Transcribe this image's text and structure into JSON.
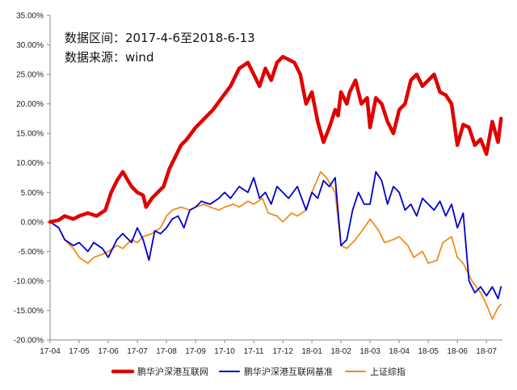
{
  "chart_data": {
    "type": "line",
    "annotations": [
      "数据区间：2017-4-6至2018-6-13",
      "数据来源：wind"
    ],
    "y_ticks": [
      "35.00%",
      "30.00%",
      "25.00%",
      "20.00%",
      "15.00%",
      "10.00%",
      "5.00%",
      "0.00%",
      "-5.00%",
      "-10.00%",
      "-15.00%",
      "-20.00%"
    ],
    "ylim": [
      -20,
      35
    ],
    "x_ticks": [
      "17-04",
      "17-05",
      "17-06",
      "17-07",
      "17-08",
      "17-09",
      "17-10",
      "17-11",
      "17-12",
      "18-01",
      "18-02",
      "18-03",
      "18-04",
      "18-05",
      "18-06",
      "18-07"
    ],
    "xlim": [
      0,
      15.55
    ],
    "grid": false,
    "legend_position": "bottom",
    "series": [
      {
        "name": "鹏华沪深港互联网",
        "color": "#e00000",
        "x": [
          0,
          0.3,
          0.5,
          0.8,
          1.0,
          1.3,
          1.6,
          1.9,
          2.1,
          2.3,
          2.5,
          2.8,
          3.0,
          3.2,
          3.3,
          3.5,
          3.7,
          3.9,
          4.1,
          4.3,
          4.5,
          4.7,
          5.0,
          5.3,
          5.6,
          5.9,
          6.2,
          6.5,
          6.8,
          7.0,
          7.2,
          7.4,
          7.6,
          7.8,
          8.0,
          8.2,
          8.4,
          8.6,
          8.8,
          9.0,
          9.2,
          9.4,
          9.6,
          9.8,
          9.9,
          10.0,
          10.1,
          10.2,
          10.3,
          10.5,
          10.7,
          10.9,
          11.0,
          11.2,
          11.4,
          11.6,
          11.8,
          12.0,
          12.2,
          12.4,
          12.6,
          12.8,
          13.0,
          13.2,
          13.4,
          13.6,
          13.8,
          14.0,
          14.2,
          14.4,
          14.6,
          14.8,
          15.0,
          15.2,
          15.4,
          15.5
        ],
        "values": [
          0,
          0.3,
          1.0,
          0.5,
          1.0,
          1.5,
          1.0,
          2.0,
          5.0,
          7.0,
          8.5,
          6.0,
          5.0,
          4.5,
          2.5,
          4.0,
          5.0,
          6.0,
          9.0,
          11.0,
          13.0,
          14.0,
          16.0,
          17.5,
          19.0,
          21.0,
          23.0,
          26.0,
          27.0,
          25.0,
          23.0,
          26.0,
          24.0,
          27.0,
          28.0,
          27.5,
          27.0,
          25.0,
          20.0,
          22.0,
          17.0,
          13.5,
          16.0,
          19.0,
          18.0,
          22.0,
          21.0,
          20.0,
          22.0,
          24.0,
          20.0,
          21.0,
          16.0,
          21.0,
          20.0,
          17.0,
          15.0,
          19.0,
          20.0,
          24.0,
          25.0,
          23.0,
          24.0,
          25.0,
          22.0,
          21.5,
          20.0,
          13.0,
          16.5,
          16.0,
          13.0,
          14.0,
          11.5,
          17.0,
          13.5,
          17.5
        ]
      },
      {
        "name": "鹏华沪深港互联网基准",
        "color": "#0000cc",
        "x": [
          0,
          0.3,
          0.5,
          0.8,
          1.0,
          1.3,
          1.5,
          1.8,
          2.0,
          2.3,
          2.5,
          2.8,
          3.0,
          3.2,
          3.4,
          3.6,
          3.8,
          4.0,
          4.2,
          4.4,
          4.6,
          4.8,
          5.0,
          5.2,
          5.5,
          5.8,
          6.0,
          6.2,
          6.5,
          6.8,
          7.0,
          7.2,
          7.4,
          7.6,
          7.8,
          8.0,
          8.2,
          8.5,
          8.8,
          9.0,
          9.2,
          9.4,
          9.6,
          9.8,
          10.0,
          10.2,
          10.4,
          10.6,
          10.8,
          11.0,
          11.2,
          11.4,
          11.6,
          11.8,
          12.0,
          12.2,
          12.4,
          12.6,
          12.8,
          13.0,
          13.2,
          13.4,
          13.6,
          13.8,
          14.0,
          14.2,
          14.4,
          14.6,
          14.8,
          15.0,
          15.2,
          15.4,
          15.5
        ],
        "values": [
          0,
          -1.0,
          -3.0,
          -4.0,
          -3.5,
          -5.0,
          -3.5,
          -4.5,
          -6.0,
          -3.0,
          -2.0,
          -3.5,
          -1.0,
          -3.0,
          -6.5,
          -1.5,
          -2.0,
          -1.0,
          0.5,
          1.0,
          -1.0,
          2.0,
          2.5,
          3.5,
          3.0,
          4.0,
          5.0,
          4.0,
          6.0,
          5.0,
          7.5,
          4.0,
          5.0,
          3.0,
          6.0,
          5.0,
          4.0,
          6.0,
          2.0,
          5.0,
          4.0,
          7.0,
          6.0,
          7.5,
          -4.0,
          -3.0,
          2.0,
          5.0,
          3.0,
          3.0,
          8.5,
          7.0,
          3.0,
          6.0,
          5.0,
          2.0,
          3.0,
          1.0,
          4.0,
          3.0,
          2.0,
          3.5,
          1.0,
          3.0,
          -1.0,
          1.5,
          -10.0,
          -12.0,
          -11.0,
          -12.5,
          -11.0,
          -13.0,
          -11.0
        ]
      },
      {
        "name": "上证综指",
        "color": "#f08c1e",
        "x": [
          0,
          0.3,
          0.5,
          0.8,
          1.0,
          1.3,
          1.5,
          1.8,
          2.0,
          2.3,
          2.5,
          2.8,
          3.0,
          3.2,
          3.5,
          3.8,
          4.0,
          4.2,
          4.5,
          4.8,
          5.0,
          5.3,
          5.5,
          5.8,
          6.0,
          6.3,
          6.5,
          6.8,
          7.0,
          7.3,
          7.5,
          7.8,
          8.0,
          8.3,
          8.5,
          8.8,
          9.0,
          9.3,
          9.5,
          9.8,
          10.0,
          10.2,
          10.5,
          10.8,
          11.0,
          11.3,
          11.5,
          11.8,
          12.0,
          12.3,
          12.5,
          12.8,
          13.0,
          13.3,
          13.5,
          13.8,
          14.0,
          14.2,
          14.5,
          14.8,
          15.0,
          15.2,
          15.4,
          15.5
        ],
        "values": [
          0,
          -1.0,
          -3.0,
          -4.5,
          -6.0,
          -7.0,
          -6.0,
          -5.5,
          -5.0,
          -4.0,
          -4.5,
          -3.0,
          -3.5,
          -2.5,
          -2.0,
          -1.0,
          1.0,
          2.0,
          2.5,
          2.0,
          2.5,
          3.0,
          2.5,
          2.0,
          2.5,
          3.0,
          2.5,
          3.5,
          3.0,
          4.0,
          1.5,
          1.0,
          0.0,
          1.5,
          1.0,
          2.0,
          5.0,
          8.5,
          7.5,
          5.0,
          -4.0,
          -4.5,
          -3.0,
          -1.0,
          0.5,
          -1.5,
          -3.5,
          -3.0,
          -2.5,
          -4.0,
          -6.0,
          -5.0,
          -7.0,
          -6.5,
          -3.5,
          -2.5,
          -6.0,
          -7.0,
          -10.0,
          -12.0,
          -14.0,
          -16.5,
          -14.5,
          -14.0
        ]
      }
    ]
  }
}
